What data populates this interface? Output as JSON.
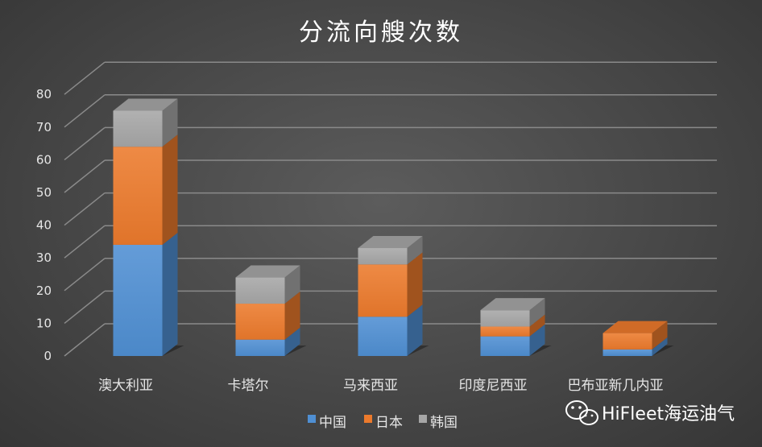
{
  "chart_data": {
    "type": "bar",
    "stacked": true,
    "three_d": true,
    "title": "分流向艘次数",
    "categories": [
      "澳大利亚",
      "卡塔尔",
      "马来西亚",
      "印度尼西亚",
      "巴布亚新几内亚"
    ],
    "series": [
      {
        "name": "中国",
        "values": [
          34,
          5,
          12,
          6,
          2
        ],
        "color": "#4f8fd3"
      },
      {
        "name": "日本",
        "values": [
          30,
          11,
          16,
          3,
          5
        ],
        "color": "#ec7a2c"
      },
      {
        "name": "韩国",
        "values": [
          11,
          8,
          5,
          5,
          0
        ],
        "color": "#a6a6a6"
      }
    ],
    "ylim": [
      0,
      80
    ],
    "yticks": [
      0,
      10,
      20,
      30,
      40,
      50,
      60,
      70,
      80
    ],
    "grid": true,
    "legend_position": "bottom"
  },
  "watermark": {
    "text": "HiFleet海运油气",
    "icon": "wechat-icon"
  }
}
